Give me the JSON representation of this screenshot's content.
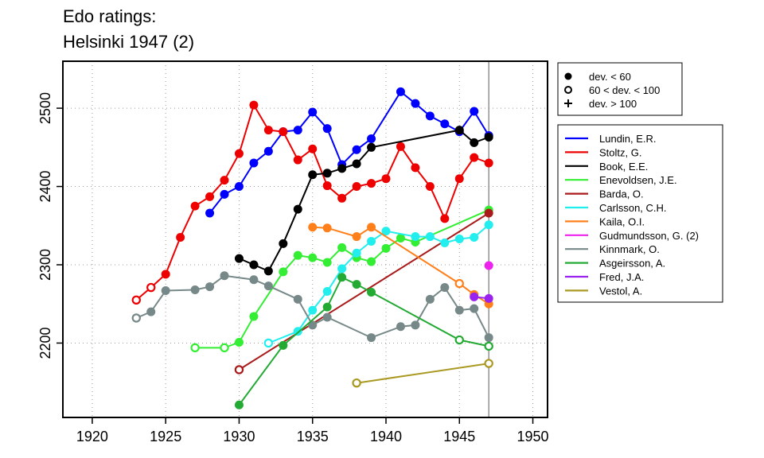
{
  "chart_data": {
    "type": "line",
    "title": "Edo ratings:",
    "subtitle": "Helsinki 1947 (2)",
    "xlabel": "",
    "ylabel": "",
    "xlim": [
      1918,
      1951
    ],
    "ylim": [
      2105,
      2560
    ],
    "x_ticks": [
      1920,
      1925,
      1930,
      1935,
      1940,
      1945,
      1950
    ],
    "y_ticks": [
      2200,
      2300,
      2400,
      2500
    ],
    "grid": true,
    "reference_line_x": 1947,
    "legend_markers": {
      "position": "top-right",
      "entries": [
        {
          "symbol": "filled",
          "label": "dev. < 60"
        },
        {
          "symbol": "open",
          "label": "60 < dev. < 100"
        },
        {
          "symbol": "plus",
          "label": "dev. > 100"
        }
      ]
    },
    "series": [
      {
        "name": "Lundin, E.R.",
        "color": "#0000ff",
        "points": [
          [
            1928,
            2366,
            "f"
          ],
          [
            1929,
            2390,
            "f"
          ],
          [
            1930,
            2400,
            "f"
          ],
          [
            1931,
            2430,
            "f"
          ],
          [
            1932,
            2445,
            "f"
          ],
          [
            1933,
            2470,
            "f"
          ],
          [
            1934,
            2472,
            "f"
          ],
          [
            1935,
            2495,
            "f"
          ],
          [
            1936,
            2474,
            "f"
          ],
          [
            1937,
            2428,
            "f"
          ],
          [
            1938,
            2447,
            "f"
          ],
          [
            1939,
            2461,
            "f"
          ],
          [
            1941,
            2521,
            "f"
          ],
          [
            1942,
            2506,
            "f"
          ],
          [
            1943,
            2490,
            "f"
          ],
          [
            1944,
            2480,
            "f"
          ],
          [
            1945,
            2470,
            "f"
          ],
          [
            1946,
            2496,
            "f"
          ],
          [
            1947,
            2465,
            "f"
          ]
        ]
      },
      {
        "name": "Stoltz, G.",
        "color": "#ee0000",
        "points": [
          [
            1923,
            2255,
            "o"
          ],
          [
            1924,
            2271,
            "o"
          ],
          [
            1925,
            2288,
            "f"
          ],
          [
            1926,
            2335,
            "f"
          ],
          [
            1927,
            2375,
            "f"
          ],
          [
            1928,
            2387,
            "f"
          ],
          [
            1929,
            2408,
            "f"
          ],
          [
            1930,
            2442,
            "f"
          ],
          [
            1931,
            2504,
            "f"
          ],
          [
            1932,
            2472,
            "f"
          ],
          [
            1933,
            2470,
            "f"
          ],
          [
            1934,
            2434,
            "f"
          ],
          [
            1935,
            2448,
            "f"
          ],
          [
            1936,
            2401,
            "f"
          ],
          [
            1937,
            2385,
            "f"
          ],
          [
            1938,
            2400,
            "f"
          ],
          [
            1939,
            2404,
            "f"
          ],
          [
            1940,
            2410,
            "f"
          ],
          [
            1941,
            2451,
            "f"
          ],
          [
            1942,
            2424,
            "f"
          ],
          [
            1943,
            2400,
            "f"
          ],
          [
            1944,
            2359,
            "f"
          ],
          [
            1945,
            2410,
            "f"
          ],
          [
            1946,
            2437,
            "f"
          ],
          [
            1947,
            2430,
            "f"
          ]
        ]
      },
      {
        "name": "Book, E.E.",
        "color": "#000000",
        "points": [
          [
            1930,
            2308,
            "f"
          ],
          [
            1931,
            2300,
            "f"
          ],
          [
            1932,
            2292,
            "f"
          ],
          [
            1933,
            2327,
            "f"
          ],
          [
            1934,
            2371,
            "f"
          ],
          [
            1935,
            2415,
            "f"
          ],
          [
            1936,
            2417,
            "f"
          ],
          [
            1937,
            2423,
            "f"
          ],
          [
            1938,
            2429,
            "f"
          ],
          [
            1939,
            2450,
            "f"
          ],
          [
            1945,
            2472,
            "f"
          ],
          [
            1946,
            2456,
            "f"
          ],
          [
            1947,
            2463,
            "f"
          ]
        ]
      },
      {
        "name": "Enevoldsen, J.E.",
        "color": "#33ee33",
        "points": [
          [
            1927,
            2194,
            "o"
          ],
          [
            1929,
            2194,
            "o"
          ],
          [
            1930,
            2201,
            "f"
          ],
          [
            1931,
            2234,
            "f"
          ],
          [
            1933,
            2291,
            "f"
          ],
          [
            1934,
            2312,
            "f"
          ],
          [
            1935,
            2309,
            "f"
          ],
          [
            1936,
            2303,
            "f"
          ],
          [
            1937,
            2322,
            "f"
          ],
          [
            1938,
            2309,
            "f"
          ],
          [
            1939,
            2304,
            "f"
          ],
          [
            1940,
            2321,
            "f"
          ],
          [
            1941,
            2334,
            "f"
          ],
          [
            1942,
            2329,
            "f"
          ],
          [
            1947,
            2370,
            "f"
          ]
        ]
      },
      {
        "name": "Barda, O.",
        "color": "#aa1a1a",
        "points": [
          [
            1930,
            2166,
            "o"
          ],
          [
            1947,
            2366,
            "f"
          ]
        ]
      },
      {
        "name": "Carlsson, C.H.",
        "color": "#22eeee",
        "points": [
          [
            1932,
            2200,
            "o"
          ],
          [
            1934,
            2215,
            "f"
          ],
          [
            1935,
            2242,
            "f"
          ],
          [
            1936,
            2266,
            "f"
          ],
          [
            1937,
            2295,
            "f"
          ],
          [
            1938,
            2315,
            "f"
          ],
          [
            1939,
            2330,
            "f"
          ],
          [
            1940,
            2343,
            "f"
          ],
          [
            1942,
            2336,
            "f"
          ],
          [
            1943,
            2336,
            "f"
          ],
          [
            1944,
            2328,
            "f"
          ],
          [
            1945,
            2333,
            "f"
          ],
          [
            1946,
            2335,
            "f"
          ],
          [
            1947,
            2351,
            "f"
          ]
        ]
      },
      {
        "name": "Kaila, O.I.",
        "color": "#ff7f1a",
        "points": [
          [
            1935,
            2348,
            "f"
          ],
          [
            1936,
            2347,
            "f"
          ],
          [
            1938,
            2336,
            "f"
          ],
          [
            1939,
            2348,
            "f"
          ],
          [
            1945,
            2276,
            "o"
          ],
          [
            1946,
            2262,
            "f"
          ],
          [
            1947,
            2250,
            "f"
          ]
        ]
      },
      {
        "name": "Gudmundsson, G. (2)",
        "color": "#ee22ee",
        "points": [
          [
            1947,
            2299,
            "f"
          ]
        ]
      },
      {
        "name": "Kinnmark, O.",
        "color": "#778888",
        "points": [
          [
            1923,
            2232,
            "o"
          ],
          [
            1924,
            2240,
            "f"
          ],
          [
            1925,
            2267,
            "f"
          ],
          [
            1927,
            2268,
            "f"
          ],
          [
            1928,
            2272,
            "f"
          ],
          [
            1929,
            2286,
            "f"
          ],
          [
            1931,
            2281,
            "f"
          ],
          [
            1932,
            2273,
            "f"
          ],
          [
            1934,
            2256,
            "f"
          ],
          [
            1935,
            2223,
            "f"
          ],
          [
            1936,
            2233,
            "f"
          ],
          [
            1939,
            2207,
            "f"
          ],
          [
            1941,
            2221,
            "f"
          ],
          [
            1942,
            2223,
            "f"
          ],
          [
            1943,
            2256,
            "f"
          ],
          [
            1944,
            2271,
            "f"
          ],
          [
            1945,
            2242,
            "f"
          ],
          [
            1946,
            2244,
            "f"
          ],
          [
            1947,
            2207,
            "f"
          ]
        ]
      },
      {
        "name": "Asgeirsson, A.",
        "color": "#22aa33",
        "points": [
          [
            1930,
            2121,
            "f"
          ],
          [
            1933,
            2197,
            "f"
          ],
          [
            1936,
            2246,
            "f"
          ],
          [
            1937,
            2284,
            "f"
          ],
          [
            1938,
            2275,
            "f"
          ],
          [
            1939,
            2265,
            "f"
          ],
          [
            1945,
            2204,
            "o"
          ],
          [
            1947,
            2196,
            "o"
          ]
        ]
      },
      {
        "name": "Fred, J.A.",
        "color": "#9922ee",
        "points": [
          [
            1946,
            2259,
            "f"
          ],
          [
            1947,
            2257,
            "f"
          ]
        ]
      },
      {
        "name": "Vestol, A.",
        "color": "#aa9922",
        "points": [
          [
            1938,
            2149,
            "o"
          ],
          [
            1947,
            2174,
            "o"
          ]
        ]
      }
    ]
  }
}
